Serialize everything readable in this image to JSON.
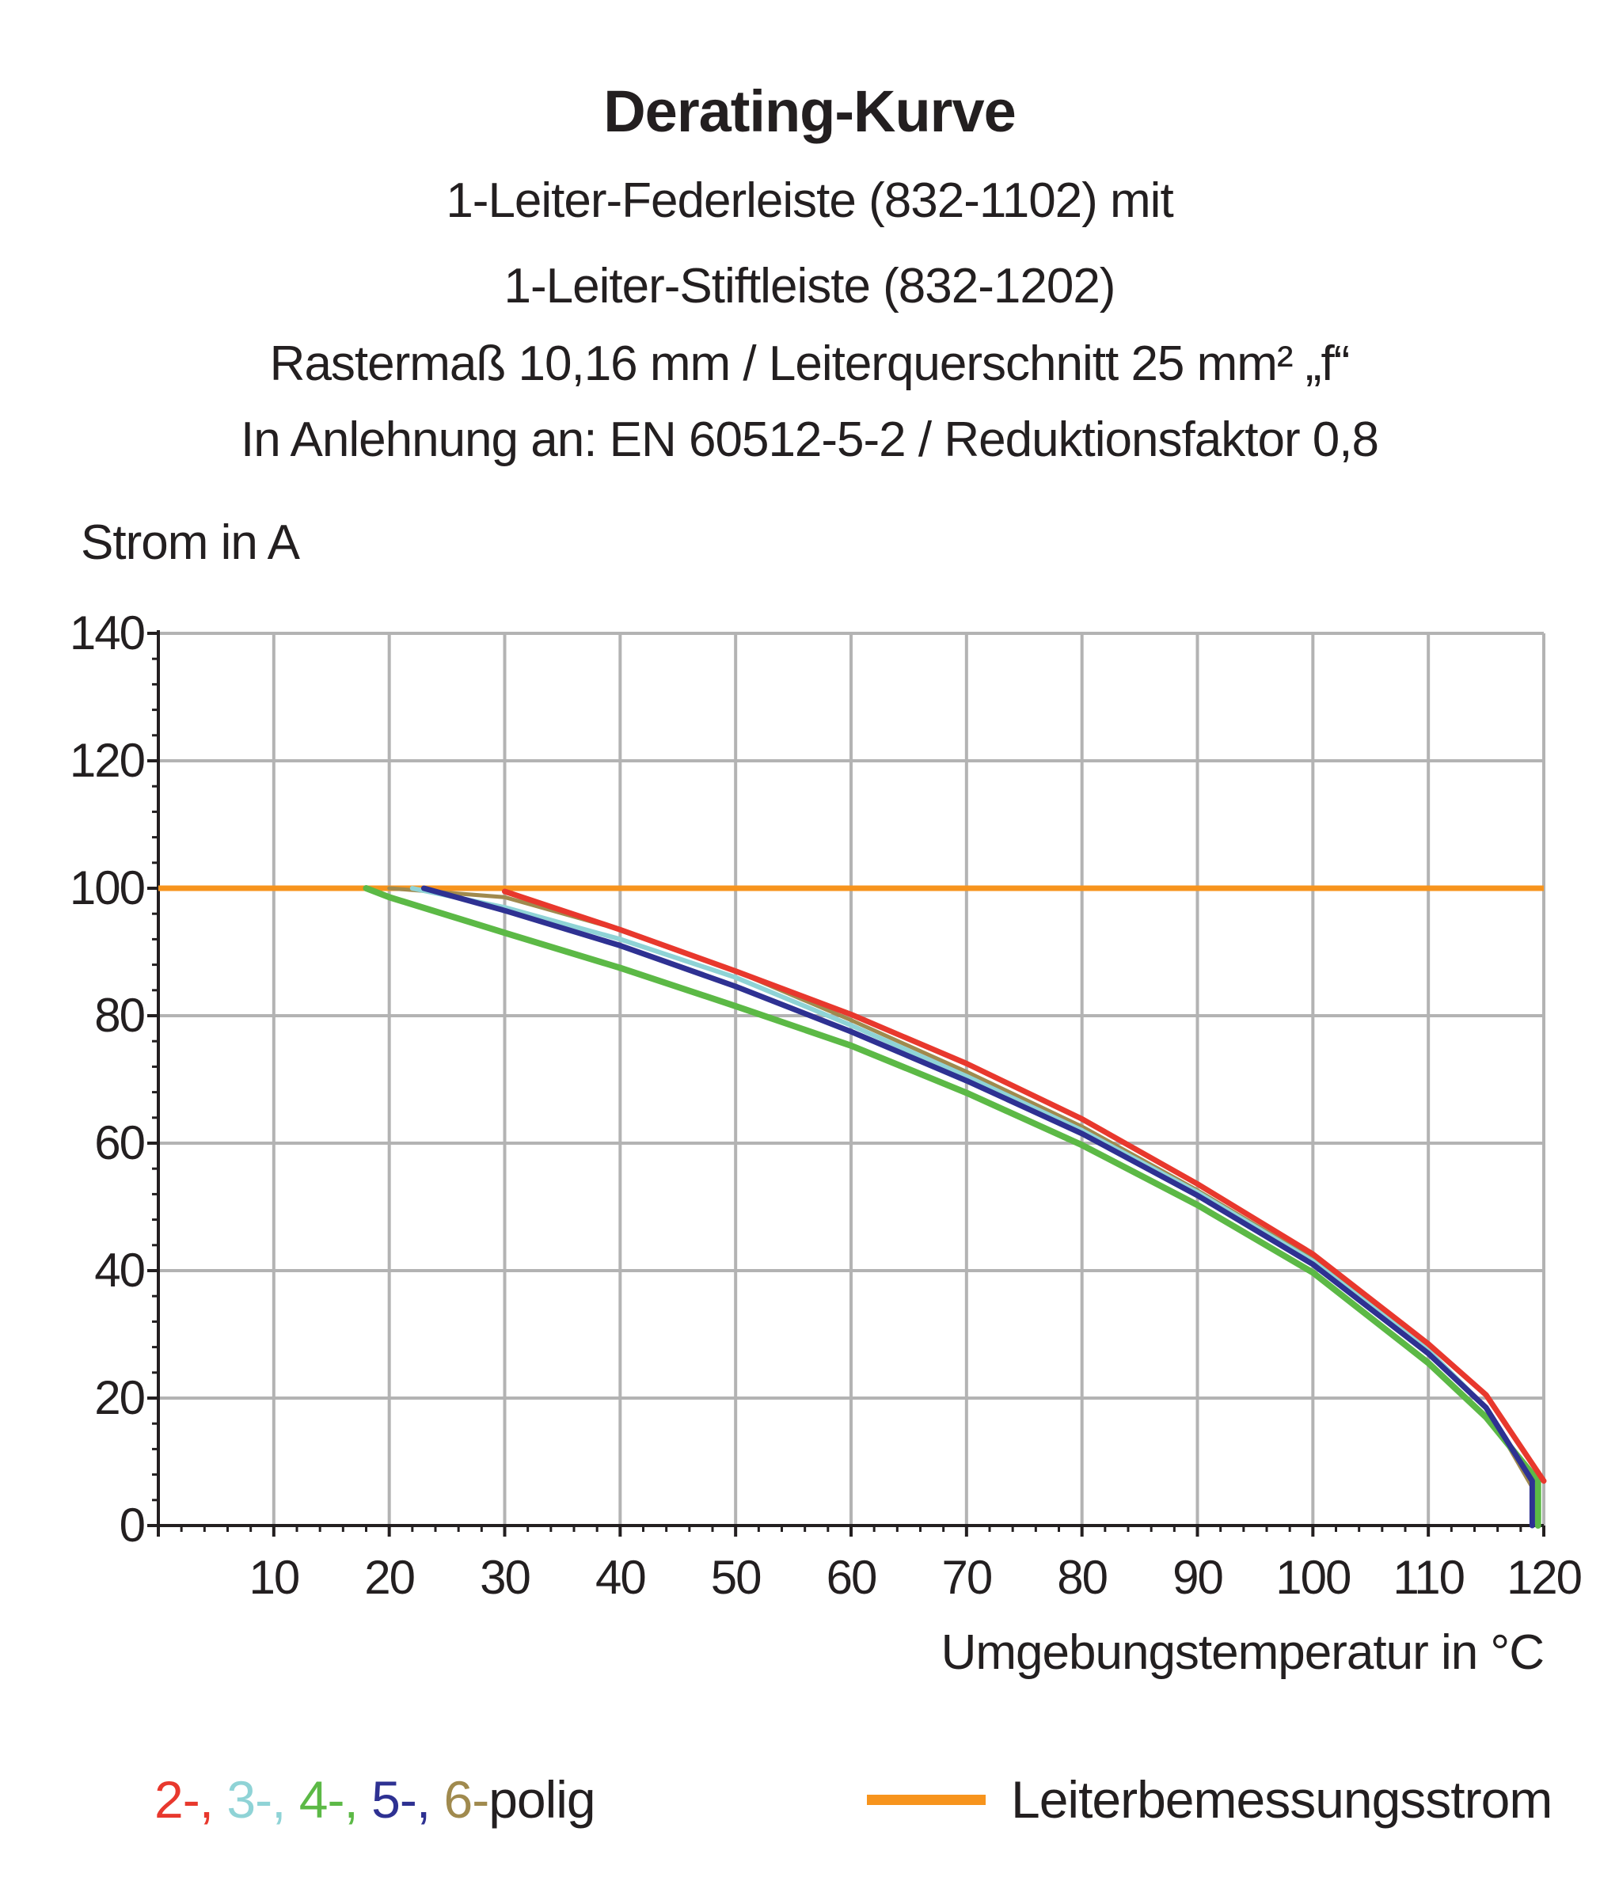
{
  "title": "Derating-Kurve",
  "subtitle_lines": [
    "1-Leiter-Federleiste (832-1102) mit",
    "1-Leiter-Stiftleiste (832-1202)",
    "Rastermaß 10,16 mm / Leiterquerschnitt 25 mm² „f“",
    "In Anlehnung an: EN 60512-5-2 / Reduktionsfaktor 0,8"
  ],
  "legend": {
    "poles": [
      {
        "text": "2-",
        "color": "#e8382d"
      },
      {
        "text": ", ",
        "color": "#e8382d"
      },
      {
        "text": "3-",
        "color": "#8fd3d6"
      },
      {
        "text": ", ",
        "color": "#8fd3d6"
      },
      {
        "text": "4-",
        "color": "#5cb946"
      },
      {
        "text": ", ",
        "color": "#5cb946"
      },
      {
        "text": "5-",
        "color": "#2e3192"
      },
      {
        "text": ", ",
        "color": "#2e3192"
      },
      {
        "text": "6-",
        "color": "#a08a4e"
      }
    ],
    "poles_suffix": "polig",
    "rated_current_label": "Leiterbemessungsstrom",
    "rated_current_color": "#f7941d"
  },
  "chart_data": {
    "type": "line",
    "title": "Derating-Kurve",
    "xlabel": "Umgebungstemperatur in °C",
    "ylabel": "Strom in A",
    "xlim": [
      0,
      120
    ],
    "ylim": [
      0,
      140
    ],
    "x_ticks": [
      10,
      20,
      30,
      40,
      50,
      60,
      70,
      80,
      90,
      100,
      110,
      120
    ],
    "y_ticks": [
      0,
      20,
      40,
      60,
      80,
      100,
      120,
      140
    ],
    "grid": true,
    "reference_lines": [
      {
        "name": "Leiterbemessungsstrom",
        "y": 100,
        "color": "#f7941d"
      }
    ],
    "series": [
      {
        "name": "6-polig",
        "color": "#a08a4e",
        "width": 5,
        "points": [
          [
            20,
            100
          ],
          [
            30,
            98.6
          ],
          [
            40,
            93.5
          ],
          [
            50,
            87
          ],
          [
            60,
            79.3
          ],
          [
            70,
            71.2
          ],
          [
            80,
            62.6
          ],
          [
            90,
            52.6
          ],
          [
            100,
            41.8
          ],
          [
            110,
            27.5
          ],
          [
            115,
            18.5
          ],
          [
            119,
            6
          ],
          [
            119,
            0
          ]
        ]
      },
      {
        "name": "3-polig",
        "color": "#8fd3d6",
        "width": 6,
        "points": [
          [
            22,
            100
          ],
          [
            30,
            97
          ],
          [
            40,
            92
          ],
          [
            50,
            86
          ],
          [
            60,
            78.5
          ],
          [
            70,
            70.5
          ],
          [
            80,
            62
          ],
          [
            90,
            52.3
          ],
          [
            100,
            41.5
          ],
          [
            110,
            27.5
          ],
          [
            115,
            18.5
          ],
          [
            119,
            7
          ],
          [
            119,
            0
          ]
        ]
      },
      {
        "name": "4-polig",
        "color": "#5cb946",
        "width": 8,
        "points": [
          [
            18,
            100
          ],
          [
            20,
            98.6
          ],
          [
            30,
            93
          ],
          [
            40,
            87.5
          ],
          [
            50,
            81.5
          ],
          [
            60,
            75.3
          ],
          [
            70,
            67.9
          ],
          [
            80,
            59.7
          ],
          [
            90,
            50.3
          ],
          [
            100,
            39.7
          ],
          [
            110,
            25.5
          ],
          [
            115,
            17
          ],
          [
            119.5,
            7
          ],
          [
            119.5,
            0
          ]
        ]
      },
      {
        "name": "5-polig",
        "color": "#2e3192",
        "width": 7,
        "points": [
          [
            23,
            100
          ],
          [
            30,
            96.5
          ],
          [
            40,
            91
          ],
          [
            50,
            84.6
          ],
          [
            60,
            77.5
          ],
          [
            70,
            69.8
          ],
          [
            80,
            61.5
          ],
          [
            90,
            51.8
          ],
          [
            100,
            41
          ],
          [
            110,
            27
          ],
          [
            115,
            18.5
          ],
          [
            119,
            7
          ],
          [
            119,
            0
          ]
        ]
      },
      {
        "name": "2-polig",
        "color": "#e8382d",
        "width": 7,
        "points": [
          [
            30,
            99.5
          ],
          [
            40,
            93.5
          ],
          [
            50,
            87
          ],
          [
            60,
            80.2
          ],
          [
            70,
            72.5
          ],
          [
            80,
            63.8
          ],
          [
            90,
            53.6
          ],
          [
            100,
            42.6
          ],
          [
            110,
            28.5
          ],
          [
            115,
            20.5
          ],
          [
            120,
            7
          ]
        ]
      }
    ]
  }
}
